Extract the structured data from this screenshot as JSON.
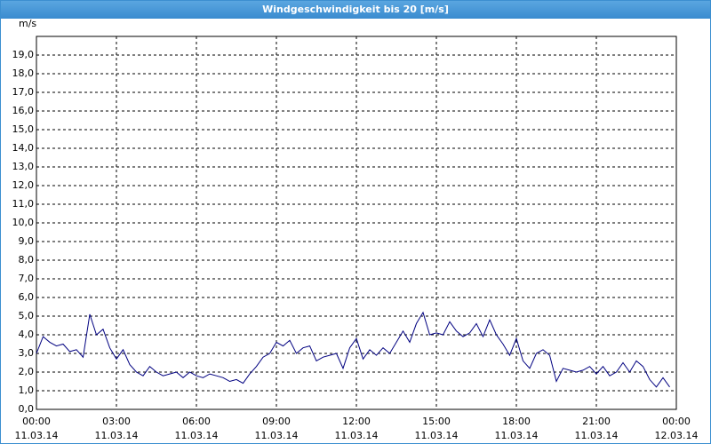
{
  "title": "Windgeschwindigkeit bis 20 [m/s]",
  "chart_data": {
    "type": "line",
    "y_unit": "m/s",
    "x": [
      0,
      0.25,
      0.5,
      0.75,
      1,
      1.25,
      1.5,
      1.75,
      2,
      2.25,
      2.5,
      2.75,
      3,
      3.25,
      3.5,
      3.75,
      4,
      4.25,
      4.5,
      4.75,
      5,
      5.25,
      5.5,
      5.75,
      6,
      6.25,
      6.5,
      6.75,
      7,
      7.25,
      7.5,
      7.75,
      8,
      8.25,
      8.5,
      8.75,
      9,
      9.25,
      9.5,
      9.75,
      10,
      10.25,
      10.5,
      10.75,
      11,
      11.25,
      11.5,
      11.75,
      12,
      12.25,
      12.5,
      12.75,
      13,
      13.25,
      13.5,
      13.75,
      14,
      14.25,
      14.5,
      14.75,
      15,
      15.25,
      15.5,
      15.75,
      16,
      16.25,
      16.5,
      16.75,
      17,
      17.25,
      17.5,
      17.75,
      18,
      18.25,
      18.5,
      18.75,
      19,
      19.25,
      19.5,
      19.75,
      20,
      20.25,
      20.5,
      20.75,
      21,
      21.25,
      21.5,
      21.75,
      22,
      22.25,
      22.5,
      22.75,
      23,
      23.25,
      23.5,
      23.75
    ],
    "series": [
      {
        "color": "#000080",
        "values": [
          3.0,
          3.9,
          3.6,
          3.4,
          3.5,
          3.1,
          3.2,
          2.8,
          5.1,
          4.0,
          4.3,
          3.3,
          2.7,
          3.2,
          2.4,
          2.0,
          1.8,
          2.3,
          2.0,
          1.8,
          1.9,
          2.0,
          1.7,
          2.0,
          1.8,
          1.7,
          1.9,
          1.8,
          1.7,
          1.5,
          1.6,
          1.4,
          1.9,
          2.3,
          2.8,
          3.0,
          3.6,
          3.4,
          3.7,
          3.0,
          3.3,
          3.4,
          2.6,
          2.8,
          2.9,
          3.0,
          2.2,
          3.3,
          3.8,
          2.7,
          3.2,
          2.9,
          3.3,
          3.0,
          3.6,
          4.2,
          3.6,
          4.6,
          5.2,
          4.0,
          4.1,
          4.0,
          4.7,
          4.2,
          3.9,
          4.1,
          4.6,
          3.9,
          4.8,
          4.0,
          3.5,
          2.9,
          3.8,
          2.6,
          2.2,
          3.0,
          3.2,
          2.9,
          1.5,
          2.2,
          2.1,
          2.0,
          2.1,
          2.3,
          1.9,
          2.3,
          1.8,
          2.0,
          2.5,
          2.0,
          2.6,
          2.3,
          1.6,
          1.2,
          1.7,
          1.2
        ]
      }
    ],
    "xlim": [
      0,
      24
    ],
    "ylim": [
      0,
      20
    ],
    "xticks": [
      {
        "value": 0,
        "label": "00:00",
        "date": "11.03.14"
      },
      {
        "value": 3,
        "label": "03:00",
        "date": "11.03.14"
      },
      {
        "value": 6,
        "label": "06:00",
        "date": "11.03.14"
      },
      {
        "value": 9,
        "label": "09:00",
        "date": "11.03.14"
      },
      {
        "value": 12,
        "label": "12:00",
        "date": "11.03.14"
      },
      {
        "value": 15,
        "label": "15:00",
        "date": "11.03.14"
      },
      {
        "value": 18,
        "label": "18:00",
        "date": "11.03.14"
      },
      {
        "value": 21,
        "label": "21:00",
        "date": "11.03.14"
      },
      {
        "value": 24,
        "label": "00:00",
        "date": "12.03.14"
      }
    ],
    "yticks": [
      {
        "value": 0,
        "label": "0,0"
      },
      {
        "value": 1,
        "label": "1,0"
      },
      {
        "value": 2,
        "label": "2,0"
      },
      {
        "value": 3,
        "label": "3,0"
      },
      {
        "value": 4,
        "label": "4,0"
      },
      {
        "value": 5,
        "label": "5,0"
      },
      {
        "value": 6,
        "label": "6,0"
      },
      {
        "value": 7,
        "label": "7,0"
      },
      {
        "value": 8,
        "label": "8,0"
      },
      {
        "value": 9,
        "label": "9,0"
      },
      {
        "value": 10,
        "label": "10,0"
      },
      {
        "value": 11,
        "label": "11,0"
      },
      {
        "value": 12,
        "label": "12,0"
      },
      {
        "value": 13,
        "label": "13,0"
      },
      {
        "value": 14,
        "label": "14,0"
      },
      {
        "value": 15,
        "label": "15,0"
      },
      {
        "value": 16,
        "label": "16,0"
      },
      {
        "value": 17,
        "label": "17,0"
      },
      {
        "value": 18,
        "label": "18,0"
      },
      {
        "value": 19,
        "label": "19,0"
      }
    ],
    "grid": true
  }
}
